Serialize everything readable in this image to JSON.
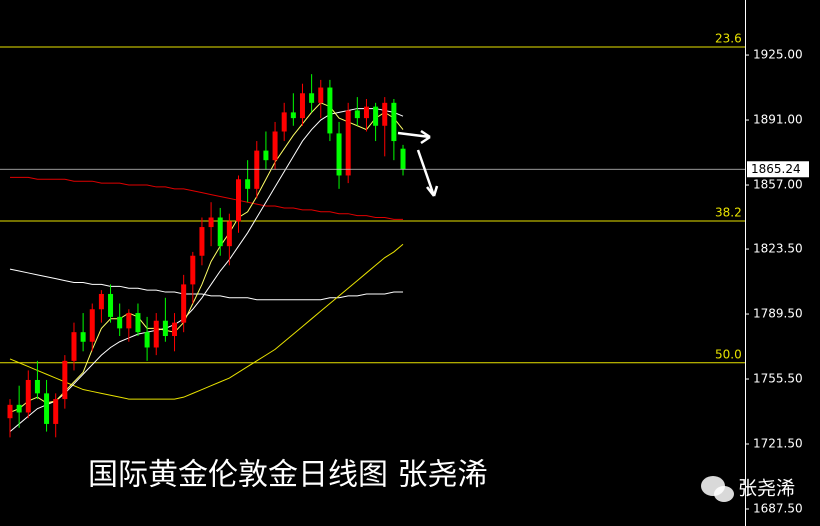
{
  "chart_data": {
    "type": "candlestick",
    "title": "国际黄金伦敦金日线图  张尧浠",
    "watermark": "张尧浠",
    "up_color": "#ff0000",
    "down_color": "#00ff00",
    "open": [
      1735,
      1742,
      1738,
      1755,
      1748,
      1732,
      1745,
      1765,
      1780,
      1775,
      1792,
      1800,
      1788,
      1782,
      1790,
      1780,
      1772,
      1786,
      1778,
      1785,
      1805,
      1820,
      1835,
      1840,
      1825,
      1838,
      1860,
      1855,
      1875,
      1870,
      1885,
      1895,
      1892,
      1905,
      1900,
      1908,
      1884,
      1862,
      1896,
      1892,
      1898,
      1888,
      1900,
      1876
    ],
    "high": [
      1745,
      1752,
      1760,
      1765,
      1755,
      1748,
      1768,
      1785,
      1790,
      1795,
      1802,
      1805,
      1795,
      1792,
      1795,
      1788,
      1790,
      1798,
      1790,
      1810,
      1822,
      1840,
      1848,
      1845,
      1842,
      1862,
      1870,
      1880,
      1885,
      1890,
      1900,
      1905,
      1910,
      1915,
      1912,
      1912,
      1890,
      1900,
      1903,
      1902,
      1900,
      1903,
      1902,
      1878
    ],
    "low": [
      1725,
      1730,
      1735,
      1745,
      1728,
      1725,
      1740,
      1760,
      1770,
      1770,
      1785,
      1785,
      1778,
      1775,
      1778,
      1765,
      1768,
      1775,
      1770,
      1780,
      1795,
      1815,
      1825,
      1820,
      1815,
      1832,
      1848,
      1850,
      1865,
      1865,
      1880,
      1888,
      1888,
      1895,
      1892,
      1880,
      1855,
      1858,
      1888,
      1885,
      1880,
      1872,
      1870,
      1862
    ],
    "close": [
      1742,
      1738,
      1755,
      1748,
      1732,
      1745,
      1765,
      1780,
      1775,
      1792,
      1800,
      1788,
      1782,
      1790,
      1780,
      1772,
      1786,
      1778,
      1785,
      1805,
      1820,
      1835,
      1840,
      1825,
      1838,
      1860,
      1855,
      1875,
      1870,
      1885,
      1895,
      1892,
      1905,
      1900,
      1908,
      1884,
      1862,
      1896,
      1892,
      1898,
      1888,
      1900,
      1880,
      1865.24
    ],
    "overlays": [
      {
        "color": "#e00000",
        "values": [
          1861,
          1861,
          1861,
          1860,
          1860,
          1860,
          1860,
          1859,
          1859,
          1859,
          1858,
          1858,
          1858,
          1857,
          1857,
          1857,
          1856,
          1856,
          1855,
          1855,
          1854,
          1853,
          1852,
          1851,
          1850,
          1849,
          1848,
          1847,
          1846,
          1846,
          1845,
          1845,
          1844,
          1844,
          1843,
          1843,
          1842,
          1842,
          1841,
          1841,
          1840,
          1840,
          1839,
          1839
        ]
      },
      {
        "color": "#ffffff",
        "values": [
          1813,
          1812,
          1811,
          1810,
          1809,
          1808,
          1807,
          1806,
          1806,
          1805,
          1805,
          1804,
          1804,
          1803,
          1803,
          1802,
          1802,
          1801,
          1801,
          1800,
          1800,
          1800,
          1799,
          1799,
          1798,
          1798,
          1798,
          1797,
          1797,
          1797,
          1797,
          1797,
          1797,
          1797,
          1797,
          1798,
          1798,
          1799,
          1799,
          1800,
          1800,
          1800,
          1801,
          1801
        ]
      },
      {
        "color": "#e8e200",
        "values": [
          1766,
          1764,
          1762,
          1760,
          1758,
          1756,
          1754,
          1752,
          1750,
          1749,
          1748,
          1747,
          1746,
          1745,
          1745,
          1745,
          1745,
          1745,
          1745,
          1746,
          1748,
          1750,
          1752,
          1754,
          1756,
          1759,
          1762,
          1765,
          1768,
          1771,
          1775,
          1779,
          1783,
          1787,
          1791,
          1795,
          1799,
          1803,
          1807,
          1811,
          1815,
          1819,
          1822,
          1826
        ]
      },
      {
        "color": "#ffffff",
        "values": [
          1728,
          1732,
          1736,
          1740,
          1742,
          1744,
          1748,
          1753,
          1758,
          1763,
          1768,
          1772,
          1775,
          1777,
          1779,
          1780,
          1781,
          1782,
          1784,
          1787,
          1792,
          1798,
          1805,
          1812,
          1818,
          1825,
          1832,
          1840,
          1848,
          1856,
          1864,
          1872,
          1880,
          1886,
          1891,
          1894,
          1895,
          1896,
          1897,
          1897,
          1897,
          1896,
          1895,
          1893
        ]
      },
      {
        "color": "#ffff66",
        "values": [
          1738,
          1740,
          1744,
          1746,
          1743,
          1744,
          1749,
          1754,
          1759,
          1771,
          1782,
          1787,
          1787,
          1790,
          1788,
          1782,
          1782,
          1781,
          1780,
          1785,
          1795,
          1805,
          1817,
          1825,
          1832,
          1840,
          1843,
          1851,
          1860,
          1869,
          1876,
          1883,
          1889,
          1895,
          1900,
          1898,
          1892,
          1890,
          1888,
          1886,
          1892,
          1895,
          1892,
          1886
        ]
      }
    ],
    "levels": [
      {
        "value": 1929.2,
        "label": "23.6"
      },
      {
        "value": 1838.2,
        "label": "38.2"
      },
      {
        "value": 1764.0,
        "label": "50.0"
      }
    ],
    "level_color": "#e8e200",
    "ylim": [
      1678.6,
      1953.8
    ],
    "yticks": [
      {
        "value": 1925,
        "label": "1925.00"
      },
      {
        "value": 1891,
        "label": "1891.00"
      },
      {
        "value": 1857,
        "label": "1857.00"
      },
      {
        "value": 1823.5,
        "label": "1823.50"
      },
      {
        "value": 1789.5,
        "label": "1789.50"
      },
      {
        "value": 1755.5,
        "label": "1755.50"
      },
      {
        "value": 1721.5,
        "label": "1721.50"
      },
      {
        "value": 1687.5,
        "label": "1687.50"
      }
    ]
  }
}
